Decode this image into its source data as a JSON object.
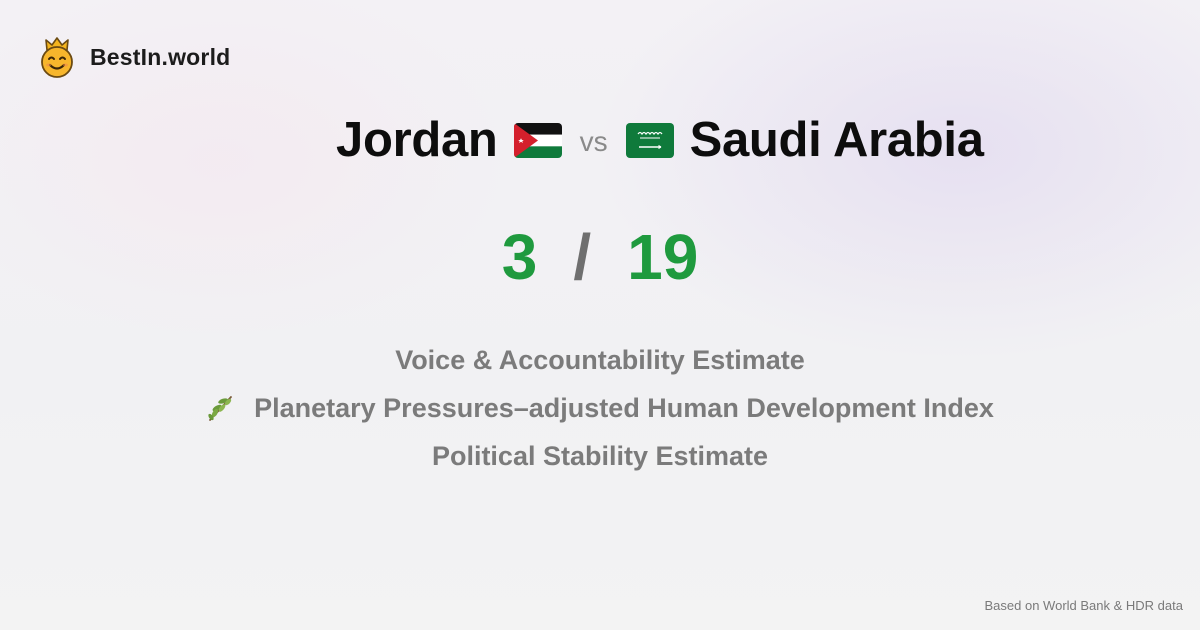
{
  "brand": {
    "name": "BestIn.world",
    "logo_icon": "crowned-smiley-icon"
  },
  "comparison": {
    "country_a": {
      "name": "Jordan",
      "flag_icon": "jordan-flag-icon"
    },
    "vs_label": "vs",
    "country_b": {
      "name": "Saudi Arabia",
      "flag_icon": "saudi-arabia-flag-icon"
    }
  },
  "score": {
    "a": "3",
    "separator": "/",
    "b": "19"
  },
  "metrics": [
    {
      "label": "Voice & Accountability Estimate"
    },
    {
      "label": "Planetary Pressures–adjusted Human Development Index",
      "icon": "olive-branch-icon"
    },
    {
      "label": "Political Stability Estimate"
    }
  ],
  "footer": {
    "source_note": "Based on World Bank & HDR data"
  },
  "colors": {
    "score_green": "#1f9a3e",
    "metric_gray": "#7b7b7b",
    "title_black": "#0d0d0d"
  }
}
